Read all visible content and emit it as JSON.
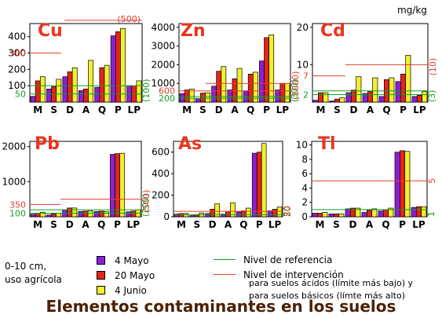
{
  "title": "Elementos contaminantes en los suelos",
  "unit": "mg/kg",
  "note_lines": [
    "0-10 cm,",
    "uso agrícola"
  ],
  "legend": {
    "series": [
      {
        "label": "4 Mayo",
        "color": "#8a1fd6"
      },
      {
        "label": "20 Mayo",
        "color": "#e32515"
      },
      {
        "label": "4 Junio",
        "color": "#f1f12c"
      }
    ],
    "reference_label": "Nivel de referencia",
    "intervention_label": "Nivel de intervención",
    "intervention_desc": [
      "para suelos ácidos (límite más bajo) y",
      "para suelos básicos (límte más alto)"
    ],
    "reference_color": "#10a020",
    "intervention_color": "#e04030"
  },
  "chart_data": [
    {
      "type": "bar",
      "element": "Cu",
      "categories": [
        "M",
        "S",
        "D",
        "A",
        "Q",
        "P",
        "LP"
      ],
      "ytick_labels": [
        "100",
        "200",
        "300",
        "400"
      ],
      "ylim": [
        0,
        480
      ],
      "series": [
        {
          "name": "4 Mayo",
          "values": [
            35,
            80,
            155,
            70,
            90,
            405,
            100
          ]
        },
        {
          "name": "20 Mayo",
          "values": [
            130,
            95,
            185,
            80,
            210,
            430,
            100
          ]
        },
        {
          "name": "4 Junio",
          "values": [
            155,
            140,
            210,
            255,
            225,
            450,
            130
          ]
        }
      ],
      "reference_levels": [
        {
          "value": 50,
          "label": "50"
        },
        {
          "value": 100,
          "label": "(100)"
        }
      ],
      "intervention_levels": [
        {
          "value": 300,
          "label": "300"
        },
        {
          "value": 500,
          "label": "(500)"
        }
      ]
    },
    {
      "type": "bar",
      "element": "Zn",
      "categories": [
        "M",
        "S",
        "D",
        "A",
        "Q",
        "P",
        "LP"
      ],
      "ytick_labels": [
        "1000",
        "2000",
        "3000",
        "4000"
      ],
      "ylim": [
        0,
        4200
      ],
      "series": [
        {
          "name": "4 Mayo",
          "values": [
            450,
            200,
            850,
            650,
            600,
            2200,
            650
          ]
        },
        {
          "name": "20 Mayo",
          "values": [
            650,
            480,
            1650,
            1250,
            1500,
            3450,
            1000
          ]
        },
        {
          "name": "4 Junio",
          "values": [
            700,
            500,
            1900,
            1800,
            1600,
            3600,
            1000
          ]
        }
      ],
      "reference_levels": [
        {
          "value": 200,
          "label": "200"
        },
        {
          "value": 300,
          "label": "(300)"
        }
      ],
      "intervention_levels": [
        {
          "value": 600,
          "label": "600"
        },
        {
          "value": 1000,
          "label": "(1000)"
        }
      ]
    },
    {
      "type": "bar",
      "element": "Cd",
      "categories": [
        "M",
        "S",
        "D",
        "A",
        "Q",
        "P",
        "LP"
      ],
      "ytick_labels": [
        "10",
        "20"
      ],
      "ylim": [
        0,
        21
      ],
      "series": [
        {
          "name": "4 Mayo",
          "values": [
            0.5,
            0.3,
            2.5,
            2.3,
            1.5,
            5.5,
            1.5
          ]
        },
        {
          "name": "20 Mayo",
          "values": [
            2.5,
            0.8,
            3.2,
            2.8,
            6,
            7.5,
            1.8
          ]
        },
        {
          "name": "4 Junio",
          "values": [
            2.5,
            1.2,
            6.8,
            6.5,
            6.5,
            12.5,
            2.8
          ]
        }
      ],
      "reference_levels": [
        {
          "value": 2,
          "label": "2"
        },
        {
          "value": 3,
          "label": "(3)"
        }
      ],
      "intervention_levels": [
        {
          "value": 7,
          "label": "7"
        },
        {
          "value": 10,
          "label": "(10)"
        }
      ]
    },
    {
      "type": "bar",
      "element": "Pb",
      "categories": [
        "M",
        "S",
        "D",
        "A",
        "Q",
        "P",
        "LP"
      ],
      "ytick_labels": [
        "1000",
        "2000"
      ],
      "ylim": [
        0,
        2150
      ],
      "series": [
        {
          "name": "4 Mayo",
          "values": [
            70,
            50,
            200,
            150,
            150,
            1780,
            140
          ]
        },
        {
          "name": "20 Mayo",
          "values": [
            100,
            80,
            250,
            160,
            160,
            1800,
            160
          ]
        },
        {
          "name": "4 Junio",
          "values": [
            130,
            100,
            250,
            170,
            150,
            1810,
            200
          ]
        }
      ],
      "reference_levels": [
        {
          "value": 100,
          "label": "100"
        },
        {
          "value": 200,
          "label": "(200)"
        }
      ],
      "intervention_levels": [
        {
          "value": 350,
          "label": "350"
        },
        {
          "value": 500,
          "label": "(500)"
        }
      ]
    },
    {
      "type": "bar",
      "element": "As",
      "categories": [
        "M",
        "S",
        "D",
        "A",
        "Q",
        "P",
        "LP"
      ],
      "ytick_labels": [
        "0",
        "200",
        "400",
        "600"
      ],
      "ylim": [
        0,
        700
      ],
      "series": [
        {
          "name": "4 Mayo",
          "values": [
            25,
            10,
            30,
            25,
            45,
            590,
            55
          ]
        },
        {
          "name": "20 Mayo",
          "values": [
            30,
            20,
            70,
            50,
            55,
            600,
            70
          ]
        },
        {
          "name": "4 Junio",
          "values": [
            30,
            35,
            120,
            130,
            80,
            680,
            90
          ]
        }
      ],
      "reference_levels": [
        {
          "value": 20,
          "label": "20"
        }
      ],
      "intervention_levels": [
        {
          "value": 50,
          "label": "50"
        }
      ]
    },
    {
      "type": "bar",
      "element": "Tl",
      "categories": [
        "M",
        "S",
        "D",
        "A",
        "Q",
        "P",
        "LP"
      ],
      "ytick_labels": [
        "0",
        "2",
        "4",
        "6",
        "8",
        "10"
      ],
      "ylim": [
        0,
        10.5
      ],
      "series": [
        {
          "name": "4 Mayo",
          "values": [
            0.5,
            0.4,
            1.1,
            0.6,
            0.8,
            9,
            1.3
          ]
        },
        {
          "name": "20 Mayo",
          "values": [
            0.5,
            0.4,
            1.2,
            0.9,
            1,
            9.2,
            1.4
          ]
        },
        {
          "name": "4 Junio",
          "values": [
            0.6,
            0.4,
            1.2,
            1.1,
            1.2,
            9.1,
            1.4
          ]
        }
      ],
      "reference_levels": [
        {
          "value": 1,
          "label": "1"
        }
      ],
      "intervention_levels": [
        {
          "value": 5,
          "label": "5"
        }
      ]
    }
  ]
}
